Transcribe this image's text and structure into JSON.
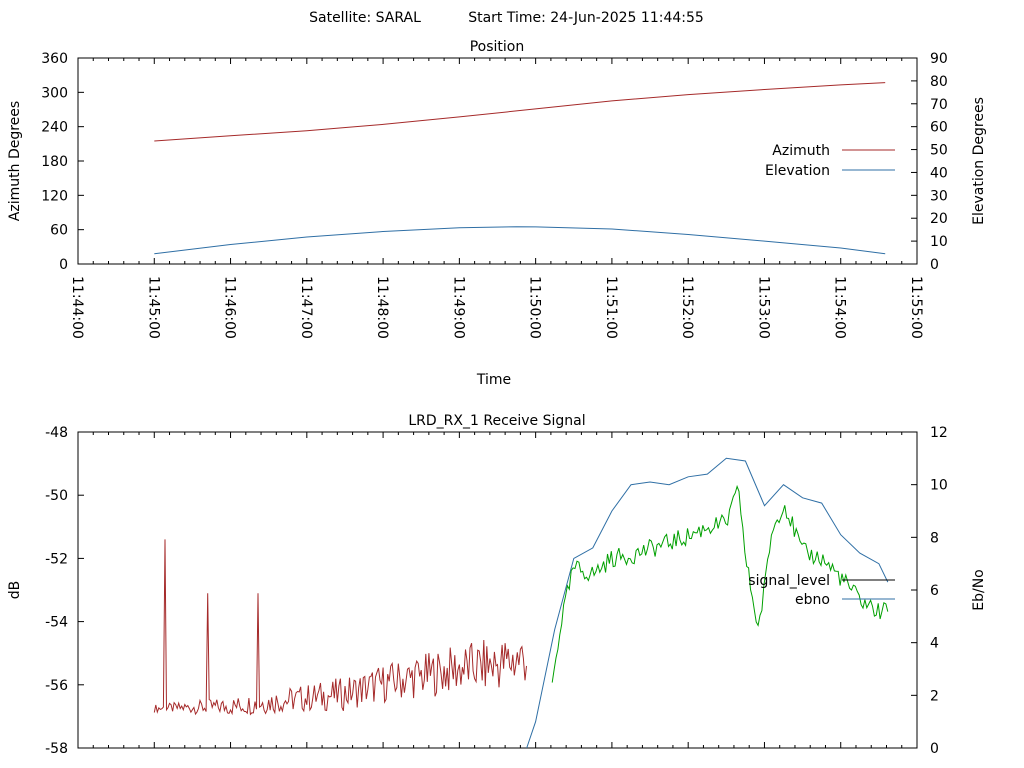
{
  "header": {
    "satellite_label": "Satellite: SARAL",
    "start_time_label": "Start Time: 24-Jun-2025 11:44:55"
  },
  "colors": {
    "azimuth": "#a52a2a",
    "elevation": "#2f6fa5",
    "signal_level": "#a52a2a",
    "ebno": "#2f6fa5",
    "green_trace": "#00a000",
    "axis": "#000000"
  },
  "chart_data": [
    {
      "type": "line",
      "title": "Position",
      "xlabel": "Time",
      "ylabel": "Azimuth Degrees",
      "y2label": "Elevation Degrees",
      "xlim": [
        "11:44:00",
        "11:55:00"
      ],
      "ylim": [
        0,
        360
      ],
      "y2lim": [
        0,
        90
      ],
      "x_ticks": [
        "11:44:00",
        "11:45:00",
        "11:46:00",
        "11:47:00",
        "11:48:00",
        "11:49:00",
        "11:50:00",
        "11:51:00",
        "11:52:00",
        "11:53:00",
        "11:54:00",
        "11:55:00"
      ],
      "y_ticks": [
        0,
        60,
        120,
        180,
        240,
        300,
        360
      ],
      "y2_ticks": [
        0,
        10,
        20,
        30,
        40,
        50,
        60,
        70,
        80,
        90
      ],
      "legend_position": "right",
      "series": [
        {
          "name": "Azimuth",
          "axis": "y",
          "x": [
            "11:45:00",
            "11:46:00",
            "11:47:00",
            "11:48:00",
            "11:49:00",
            "11:50:00",
            "11:51:00",
            "11:52:00",
            "11:53:00",
            "11:54:00",
            "11:54:35"
          ],
          "values": [
            215,
            224,
            233,
            244,
            257,
            271,
            285,
            296,
            305,
            313,
            317
          ]
        },
        {
          "name": "Elevation",
          "axis": "y2",
          "x": [
            "11:45:00",
            "11:46:00",
            "11:47:00",
            "11:48:00",
            "11:49:00",
            "11:49:45",
            "11:50:00",
            "11:51:00",
            "11:52:00",
            "11:53:00",
            "11:54:00",
            "11:54:35"
          ],
          "values": [
            4.5,
            8.5,
            11.8,
            14.2,
            15.8,
            16.3,
            16.2,
            15.3,
            12.9,
            10.0,
            7.0,
            4.5
          ]
        }
      ]
    },
    {
      "type": "line",
      "title": "LRD_RX_1 Receive Signal",
      "xlabel": "",
      "ylabel": "dB",
      "y2label": "Eb/No",
      "xlim": [
        "11:44:00",
        "11:55:00"
      ],
      "ylim": [
        -58,
        -48
      ],
      "y2lim": [
        0,
        12
      ],
      "y_ticks": [
        -58,
        -56,
        -54,
        -52,
        -50,
        -48
      ],
      "y2_ticks": [
        0,
        2,
        4,
        6,
        8,
        10,
        12
      ],
      "legend_position": "right",
      "series": [
        {
          "name": "signal_level",
          "axis": "y",
          "x": [
            "11:45:00",
            "11:45:15",
            "11:45:45",
            "11:46:00",
            "11:46:30",
            "11:47:00",
            "11:47:30",
            "11:48:00",
            "11:48:30",
            "11:49:00",
            "11:49:30",
            "11:49:53"
          ],
          "values": [
            -56.8,
            -56.8,
            -56.8,
            -56.8,
            -56.7,
            -56.6,
            -56.5,
            -56.2,
            -56.0,
            -55.8,
            -55.7,
            -55.5
          ],
          "peaks": [
            {
              "x": "11:45:08",
              "value": -51.4
            },
            {
              "x": "11:45:42",
              "value": -53.1
            },
            {
              "x": "11:46:22",
              "value": -53.1
            }
          ]
        },
        {
          "name": "ebno",
          "axis": "y2",
          "x": [
            "11:49:53",
            "11:50:00",
            "11:50:15",
            "11:50:30",
            "11:50:45",
            "11:51:00",
            "11:51:15",
            "11:51:30",
            "11:51:45",
            "11:52:00",
            "11:52:15",
            "11:52:30",
            "11:52:45",
            "11:53:00",
            "11:53:15",
            "11:53:30",
            "11:53:45",
            "11:54:00",
            "11:54:15",
            "11:54:30",
            "11:54:37"
          ],
          "values": [
            0,
            1.0,
            4.5,
            7.2,
            7.6,
            9.0,
            10.0,
            10.1,
            10.0,
            10.3,
            10.4,
            11.0,
            10.9,
            9.2,
            10.0,
            9.5,
            9.3,
            8.1,
            7.4,
            7.0,
            6.3
          ]
        },
        {
          "name": "",
          "axis": "y",
          "x": [
            "11:50:13",
            "11:50:20",
            "11:50:30",
            "11:50:45",
            "11:51:00",
            "11:51:15",
            "11:51:30",
            "11:51:45",
            "11:52:00",
            "11:52:15",
            "11:52:30",
            "11:52:40",
            "11:52:45",
            "11:52:55",
            "11:53:00",
            "11:53:05",
            "11:53:15",
            "11:53:30",
            "11:53:45",
            "11:54:00",
            "11:54:15",
            "11:54:30",
            "11:54:37"
          ],
          "values": [
            -56.0,
            -54.0,
            -52.3,
            -52.5,
            -52.0,
            -51.9,
            -51.7,
            -51.5,
            -51.3,
            -51.0,
            -50.9,
            -49.8,
            -52.0,
            -54.2,
            -53.0,
            -51.3,
            -50.2,
            -51.8,
            -52.0,
            -52.6,
            -53.3,
            -53.7,
            -53.6
          ]
        }
      ]
    }
  ]
}
